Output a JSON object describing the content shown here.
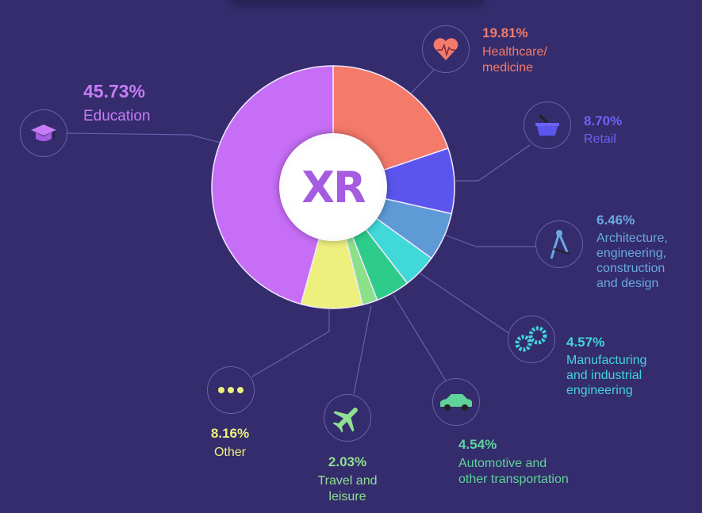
{
  "center_label": "XR",
  "chart_data": {
    "type": "pie",
    "variant": "donut",
    "start": "top, clockwise",
    "categories": [
      "Healthcare/ medicine",
      "Retail",
      "Architecture, engineering, construction and design",
      "Manufacturing and industrial engineering",
      "Automotive and other transportation",
      "Travel and leisure",
      "Other",
      "Education"
    ],
    "values": [
      19.81,
      8.7,
      6.46,
      4.57,
      4.54,
      2.03,
      8.16,
      45.73
    ],
    "unit": "%",
    "colors": [
      "#f47a6a",
      "#5b55ee",
      "#5e9ad6",
      "#40d8d8",
      "#2ecc8a",
      "#8be08a",
      "#eef07e",
      "#c76ef6"
    ]
  },
  "labels": {
    "healthcare": {
      "pct": "19.81%",
      "name": "Healthcare/\nmedicine",
      "color": "#f47a6a",
      "icon": "heart-pulse-icon"
    },
    "retail": {
      "pct": "8.70%",
      "name": "Retail",
      "color": "#6c62f2",
      "icon": "shopping-basket-icon"
    },
    "architecture": {
      "pct": "6.46%",
      "name": "Architecture,\nengineering,\nconstruction\nand design",
      "color": "#6aa8e0",
      "icon": "compass-icon"
    },
    "manufacturing": {
      "pct": "4.57%",
      "name": "Manufacturing\nand industrial\nengineering",
      "color": "#44d3e0",
      "icon": "gears-icon"
    },
    "automotive": {
      "pct": "4.54%",
      "name": "Automotive and\nother transportation",
      "color": "#5fd39a",
      "icon": "car-icon"
    },
    "travel": {
      "pct": "2.03%",
      "name": "Travel and\nleisure",
      "color": "#90e090",
      "icon": "airplane-icon"
    },
    "other": {
      "pct": "8.16%",
      "name": "Other",
      "color": "#eef07e",
      "icon": "ellipsis-icon"
    },
    "education": {
      "pct": "45.73%",
      "name": "Education",
      "color": "#c77cf5",
      "icon": "graduation-cap-icon"
    }
  },
  "background_color": "#342c6c"
}
